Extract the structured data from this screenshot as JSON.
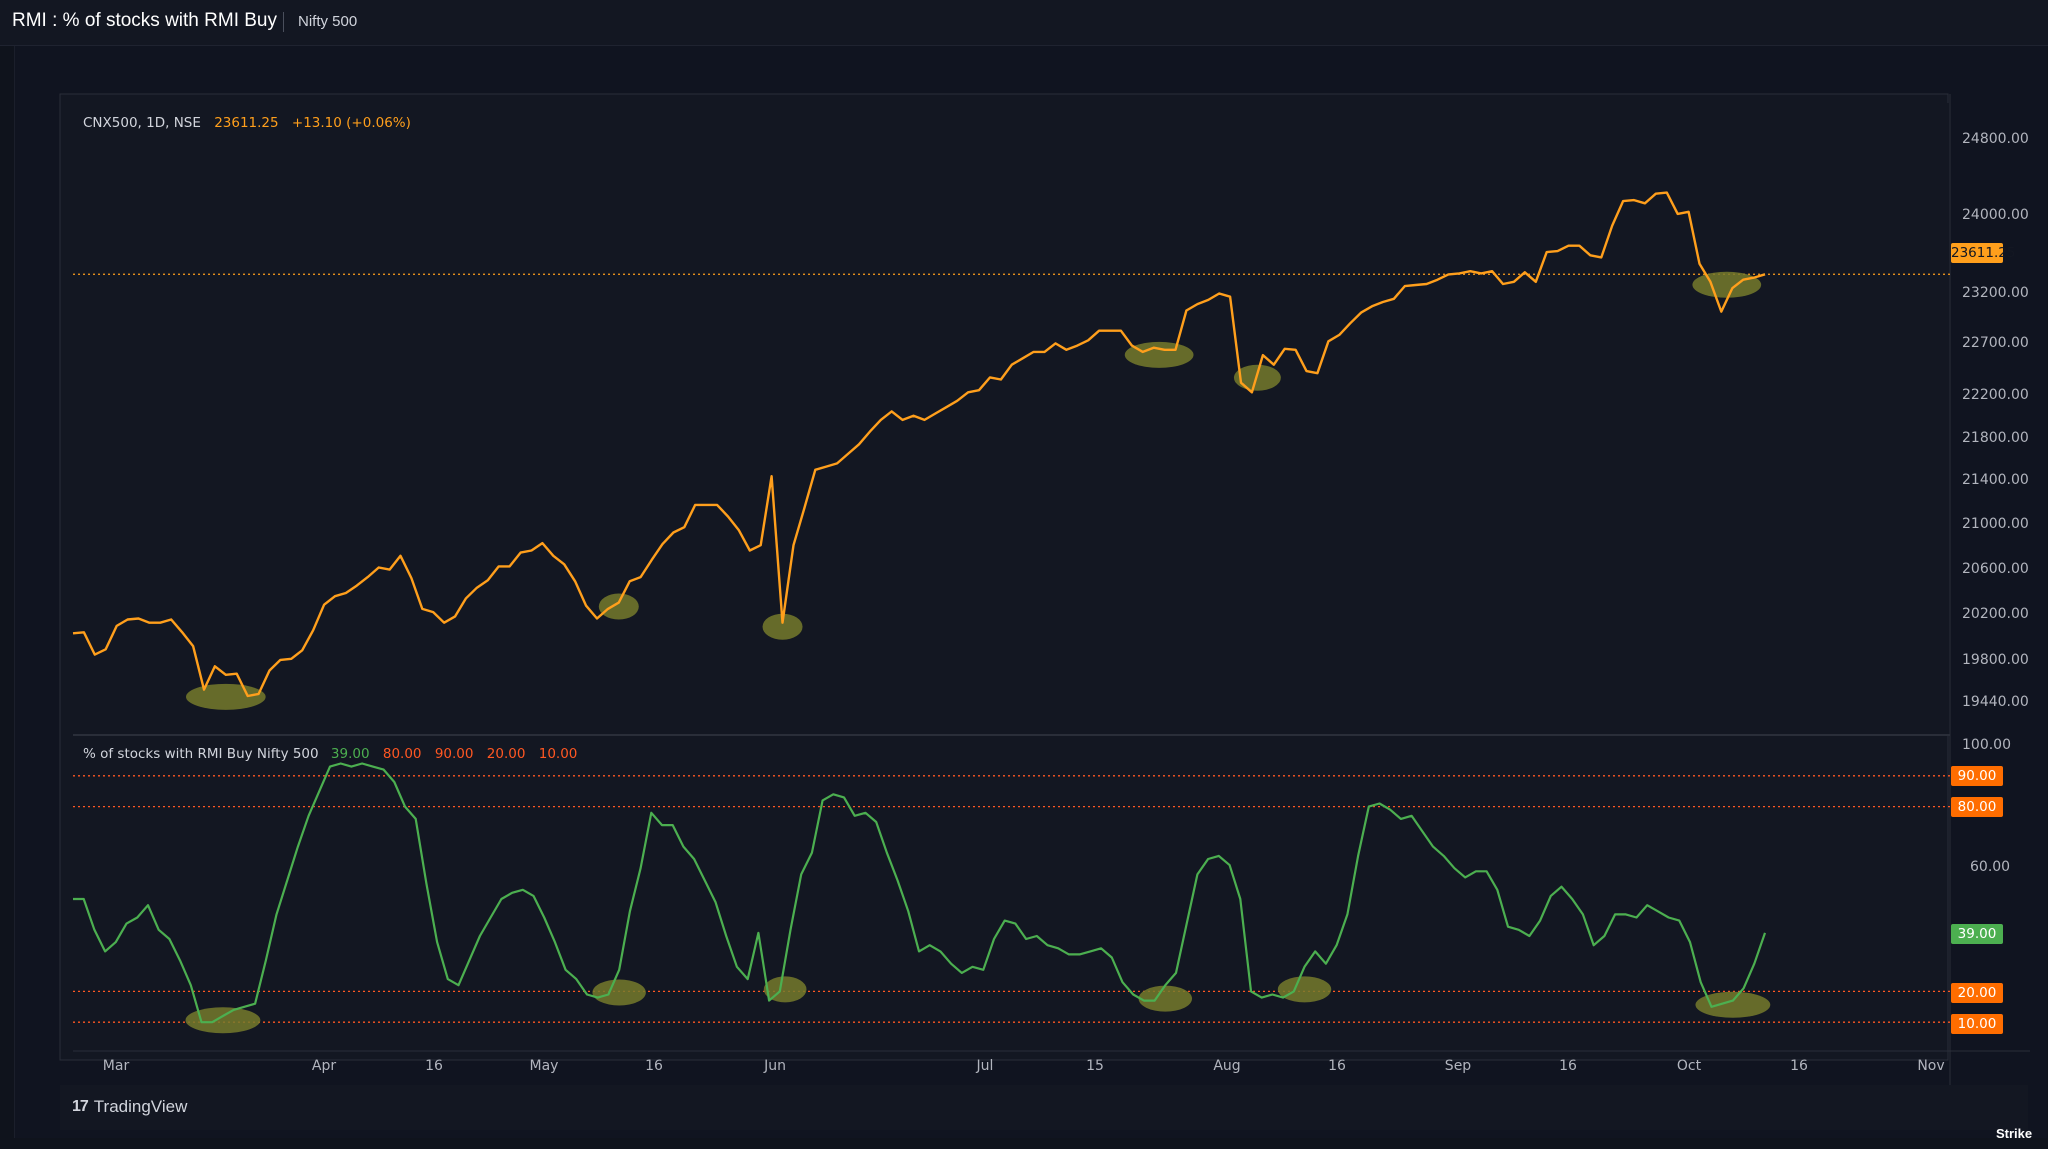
{
  "window": {
    "title": "RMI : % of stocks with RMI Buy",
    "subtitle": "Nifty 500"
  },
  "price_legend": {
    "symbol": "CNX500, 1D, NSE",
    "last": "23611.25",
    "change": "+13.10 (+0.06%)"
  },
  "indicator_legend": {
    "name": "% of stocks with RMI Buy Nifty 500",
    "value": "39.00",
    "level_80": "80.00",
    "level_90": "90.00",
    "level_20": "20.00",
    "level_10": "10.00"
  },
  "price_axis": [
    "24800.00",
    "24000.00",
    "23200.00",
    "22700.00",
    "22200.00",
    "21800.00",
    "21400.00",
    "21000.00",
    "20600.00",
    "20200.00",
    "19800.00",
    "19440.00"
  ],
  "price_badge": "23611.25",
  "indicator_axis": [
    "100.00",
    "60.00"
  ],
  "indicator_badges": {
    "b90": "90.00",
    "b80": "80.00",
    "b39": "39.00",
    "b20": "20.00",
    "b10": "10.00"
  },
  "x_axis": [
    "Mar",
    "Apr",
    "16",
    "May",
    "16",
    "Jun",
    "Jul",
    "15",
    "Aug",
    "16",
    "Sep",
    "16",
    "Oct",
    "16",
    "Nov"
  ],
  "branding": {
    "platform": "TradingView",
    "corner": "Strike"
  },
  "colors": {
    "price_line": "#ff9f1c",
    "indicator_line": "#4caf50",
    "level_line": "#ff5722",
    "highlight": "#767a2b",
    "background": "#131722"
  },
  "chart_data": [
    {
      "type": "line",
      "title": "CNX500, 1D, NSE",
      "series": [
        {
          "name": "CNX500",
          "values": [
            20230,
            20240,
            20030,
            20080,
            20300,
            20360,
            20370,
            20330,
            20330,
            20360,
            20240,
            20110,
            19700,
            19920,
            19840,
            19850,
            19640,
            19660,
            19880,
            19980,
            19990,
            20070,
            20260,
            20500,
            20580,
            20610,
            20680,
            20760,
            20850,
            20830,
            20960,
            20750,
            20460,
            20430,
            20330,
            20390,
            20560,
            20660,
            20730,
            20860,
            20860,
            20990,
            21010,
            21080,
            20960,
            20880,
            20720,
            20490,
            20370,
            20460,
            20520,
            20720,
            20760,
            20920,
            21070,
            21180,
            21230,
            21440,
            21440,
            21440,
            21330,
            21200,
            21010,
            21060,
            21710,
            20330,
            21060,
            21410,
            21770,
            21800,
            21830,
            21920,
            22010,
            22130,
            22240,
            22320,
            22240,
            22280,
            22240,
            22300,
            22360,
            22420,
            22500,
            22520,
            22640,
            22620,
            22760,
            22820,
            22880,
            22880,
            22960,
            22900,
            22940,
            22990,
            23080,
            23080,
            23080,
            22940,
            22880,
            22920,
            22900,
            22900,
            23270,
            23330,
            23370,
            23430,
            23400,
            22590,
            22500,
            22850,
            22760,
            22910,
            22900,
            22700,
            22680,
            22980,
            23040,
            23150,
            23250,
            23310,
            23350,
            23380,
            23500,
            23510,
            23520,
            23560,
            23610,
            23620,
            23640,
            23620,
            23640,
            23520,
            23540,
            23630,
            23540,
            23820,
            23830,
            23880,
            23880,
            23790,
            23770,
            24070,
            24300,
            24310,
            24280,
            24370,
            24380,
            24180,
            24200,
            23710,
            23540,
            23260,
            23480,
            23560,
            23580,
            23611.25
          ]
        }
      ],
      "x_labels": [
        "Mar",
        "Apr",
        "16",
        "May",
        "16",
        "Jun",
        "Jul",
        "15",
        "Aug",
        "16",
        "Sep",
        "16",
        "Oct",
        "16",
        "Nov"
      ],
      "ylabel": "",
      "yticks": [
        24800,
        24000,
        23200,
        22700,
        22200,
        21800,
        21400,
        21000,
        20600,
        20200,
        19800,
        19440
      ],
      "last_value": 23611.25,
      "highlighted_lows": [
        19700,
        20330,
        20330,
        22900,
        22500,
        23270
      ]
    },
    {
      "type": "line",
      "title": "% of stocks with RMI Buy Nifty 500",
      "series": [
        {
          "name": "% of stocks with RMI Buy",
          "values": [
            50,
            50,
            40,
            33,
            36,
            42,
            44,
            48,
            40,
            37,
            30,
            22,
            10,
            10,
            12,
            14,
            15,
            16,
            30,
            45,
            56,
            67,
            77,
            85,
            93,
            94,
            93,
            94,
            93,
            92,
            88,
            80,
            76,
            55,
            36,
            24,
            22,
            30,
            38,
            44,
            50,
            52,
            53,
            51,
            44,
            36,
            27,
            24,
            19,
            18,
            19,
            27,
            46,
            60,
            78,
            74,
            74,
            67,
            63,
            56,
            49,
            38,
            28,
            24,
            39,
            17,
            20,
            40,
            58,
            65,
            82,
            84,
            83,
            77,
            78,
            75,
            65,
            56,
            46,
            33,
            35,
            33,
            29,
            26,
            28,
            27,
            37,
            43,
            42,
            37,
            38,
            35,
            34,
            32,
            32,
            33,
            34,
            31,
            23,
            19,
            17,
            17,
            22,
            26,
            42,
            58,
            63,
            64,
            61,
            50,
            20,
            18,
            19,
            18,
            20,
            28,
            33,
            29,
            35,
            45,
            64,
            80,
            81,
            79,
            76,
            77,
            72,
            67,
            64,
            60,
            57,
            59,
            59,
            53,
            41,
            40,
            38,
            43,
            51,
            54,
            50,
            45,
            35,
            38,
            45,
            45,
            44,
            48,
            46,
            44,
            43,
            36,
            23,
            15,
            16,
            17,
            21,
            29,
            39
          ]
        }
      ],
      "levels": [
        90,
        80,
        20,
        10
      ],
      "ylim": [
        0,
        100
      ],
      "yticks": [
        100,
        60
      ],
      "last_value": 39.0,
      "highlighted_lows": [
        10,
        18,
        19,
        17,
        18,
        17
      ]
    }
  ]
}
